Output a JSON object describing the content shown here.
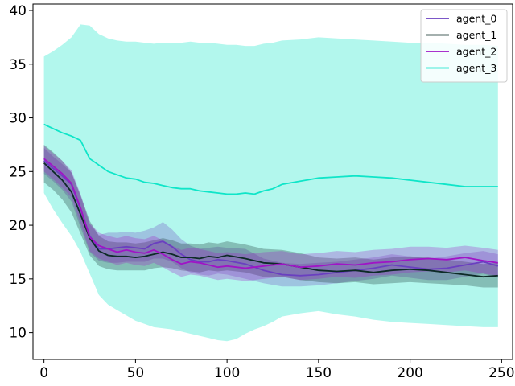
{
  "chart_data": {
    "type": "line",
    "title": "",
    "xlabel": "",
    "ylabel": "",
    "xlim": [
      -6,
      256
    ],
    "ylim": [
      7.5,
      40.6
    ],
    "xticks": [
      0,
      50,
      100,
      150,
      200,
      250
    ],
    "yticks": [
      10,
      15,
      20,
      25,
      30,
      35,
      40
    ],
    "grid": false,
    "legend_position": "top-right",
    "series": [
      {
        "name": "agent_0",
        "color": "#6a3fc0",
        "x": [
          0,
          5,
          10,
          15,
          20,
          25,
          30,
          35,
          40,
          45,
          50,
          55,
          60,
          65,
          70,
          75,
          80,
          85,
          90,
          95,
          100,
          110,
          120,
          130,
          140,
          150,
          160,
          170,
          180,
          190,
          200,
          210,
          220,
          230,
          240,
          248
        ],
        "y": [
          26.0,
          25.3,
          24.6,
          23.8,
          21.5,
          19.0,
          17.8,
          17.8,
          17.9,
          18.0,
          17.9,
          17.8,
          18.3,
          18.5,
          18.0,
          17.3,
          16.8,
          16.6,
          16.6,
          16.8,
          16.7,
          16.4,
          15.8,
          15.4,
          15.3,
          15.4,
          15.6,
          15.8,
          16.0,
          16.3,
          16.1,
          15.9,
          16.0,
          16.3,
          16.6,
          16.2
        ],
        "lower": [
          24.8,
          24.1,
          23.3,
          22.2,
          19.8,
          17.5,
          16.7,
          16.5,
          16.5,
          16.6,
          16.6,
          16.6,
          16.9,
          16.9,
          16.6,
          16.0,
          15.6,
          15.4,
          15.3,
          15.5,
          15.4,
          15.0,
          14.6,
          14.3,
          14.3,
          14.4,
          14.6,
          14.8,
          15.0,
          15.3,
          15.1,
          14.9,
          14.9,
          15.2,
          15.5,
          15.1
        ],
        "upper": [
          27.2,
          26.4,
          25.7,
          24.9,
          22.7,
          20.1,
          19.1,
          19.3,
          19.3,
          19.4,
          19.3,
          19.5,
          19.8,
          20.3,
          19.6,
          18.7,
          18.1,
          17.8,
          17.9,
          18.0,
          17.9,
          17.8,
          16.9,
          16.5,
          16.4,
          16.5,
          16.6,
          16.8,
          17.0,
          17.3,
          17.1,
          16.9,
          17.1,
          17.4,
          17.6,
          17.3
        ]
      },
      {
        "name": "agent_1",
        "color": "#0d2b27",
        "x": [
          0,
          5,
          10,
          15,
          20,
          25,
          30,
          35,
          40,
          45,
          50,
          55,
          60,
          65,
          70,
          75,
          80,
          85,
          90,
          95,
          100,
          110,
          120,
          130,
          140,
          150,
          160,
          170,
          180,
          190,
          200,
          210,
          220,
          230,
          240,
          248
        ],
        "y": [
          25.8,
          25.0,
          24.2,
          23.1,
          21.0,
          18.8,
          17.6,
          17.2,
          17.1,
          17.1,
          17.0,
          17.1,
          17.3,
          17.5,
          17.3,
          17.0,
          17.0,
          16.9,
          17.1,
          17.0,
          17.2,
          16.9,
          16.5,
          16.4,
          16.1,
          15.8,
          15.7,
          15.8,
          15.6,
          15.8,
          15.9,
          15.8,
          15.6,
          15.4,
          15.2,
          15.3
        ],
        "lower": [
          24.0,
          23.3,
          22.4,
          21.2,
          19.2,
          17.2,
          16.2,
          15.9,
          15.8,
          15.8,
          15.8,
          15.8,
          16.0,
          16.1,
          16.0,
          15.8,
          15.7,
          15.6,
          15.8,
          15.7,
          15.8,
          15.6,
          15.2,
          15.2,
          14.9,
          14.7,
          14.6,
          14.7,
          14.5,
          14.6,
          14.7,
          14.6,
          14.5,
          14.4,
          14.2,
          14.2
        ],
        "upper": [
          27.5,
          26.8,
          26.0,
          24.9,
          22.8,
          20.4,
          19.0,
          18.5,
          18.4,
          18.4,
          18.3,
          18.4,
          18.6,
          18.8,
          18.6,
          18.3,
          18.3,
          18.2,
          18.4,
          18.3,
          18.5,
          18.2,
          17.8,
          17.7,
          17.4,
          17.0,
          16.9,
          17.0,
          16.8,
          17.0,
          17.1,
          17.0,
          16.8,
          16.6,
          16.4,
          16.5
        ]
      },
      {
        "name": "agent_2",
        "color": "#a014c6",
        "x": [
          0,
          5,
          10,
          15,
          20,
          25,
          30,
          35,
          40,
          45,
          50,
          55,
          60,
          65,
          70,
          75,
          80,
          85,
          90,
          95,
          100,
          110,
          120,
          130,
          140,
          150,
          160,
          170,
          180,
          190,
          200,
          210,
          220,
          230,
          240,
          248
        ],
        "y": [
          26.2,
          25.5,
          24.8,
          23.9,
          21.6,
          18.9,
          18.1,
          17.8,
          17.5,
          17.7,
          17.5,
          17.4,
          17.7,
          17.3,
          16.8,
          16.4,
          16.6,
          16.5,
          16.3,
          16.1,
          16.2,
          16.0,
          16.2,
          16.4,
          16.1,
          16.2,
          16.4,
          16.3,
          16.5,
          16.6,
          16.8,
          16.9,
          16.8,
          17.0,
          16.7,
          16.5
        ],
        "lower": [
          25.0,
          24.3,
          23.5,
          22.6,
          20.2,
          17.6,
          16.9,
          16.6,
          16.3,
          16.5,
          16.3,
          16.2,
          16.5,
          16.1,
          15.6,
          15.2,
          15.4,
          15.3,
          15.1,
          14.9,
          15.0,
          14.8,
          15.0,
          15.2,
          14.9,
          15.0,
          15.2,
          15.1,
          15.3,
          15.4,
          15.6,
          15.7,
          15.6,
          15.8,
          15.5,
          15.3
        ],
        "upper": [
          27.4,
          26.7,
          26.0,
          25.1,
          22.9,
          20.2,
          19.3,
          19.0,
          18.8,
          19.0,
          18.8,
          18.7,
          19.0,
          18.6,
          18.1,
          17.7,
          17.9,
          17.8,
          17.6,
          17.4,
          17.5,
          17.3,
          17.5,
          17.6,
          17.3,
          17.4,
          17.6,
          17.5,
          17.7,
          17.8,
          18.0,
          18.0,
          17.9,
          18.1,
          17.9,
          17.7
        ]
      },
      {
        "name": "agent_3",
        "color": "#0fe5c8",
        "x": [
          0,
          5,
          10,
          15,
          20,
          25,
          30,
          35,
          40,
          45,
          50,
          55,
          60,
          65,
          70,
          75,
          80,
          85,
          90,
          95,
          100,
          105,
          110,
          115,
          120,
          125,
          130,
          140,
          150,
          160,
          170,
          180,
          190,
          200,
          210,
          220,
          230,
          240,
          248
        ],
        "y": [
          29.4,
          29.0,
          28.6,
          28.3,
          27.9,
          26.2,
          25.6,
          25.0,
          24.7,
          24.4,
          24.3,
          24.0,
          23.9,
          23.7,
          23.5,
          23.4,
          23.4,
          23.2,
          23.1,
          23.0,
          22.9,
          22.9,
          23.0,
          22.9,
          23.2,
          23.4,
          23.8,
          24.1,
          24.4,
          24.5,
          24.6,
          24.5,
          24.4,
          24.2,
          24.0,
          23.8,
          23.6,
          23.6,
          23.6
        ],
        "lower": [
          23.0,
          21.5,
          20.2,
          19.0,
          17.5,
          15.5,
          13.5,
          12.6,
          12.1,
          11.6,
          11.1,
          10.8,
          10.5,
          10.4,
          10.3,
          10.1,
          9.9,
          9.7,
          9.5,
          9.3,
          9.2,
          9.4,
          9.9,
          10.3,
          10.6,
          11.0,
          11.5,
          11.8,
          12.0,
          11.7,
          11.5,
          11.2,
          11.0,
          10.9,
          10.8,
          10.7,
          10.6,
          10.5,
          10.5
        ],
        "upper": [
          35.7,
          36.2,
          36.8,
          37.5,
          38.7,
          38.6,
          37.8,
          37.4,
          37.2,
          37.1,
          37.1,
          37.0,
          36.9,
          37.0,
          37.0,
          37.0,
          37.1,
          37.0,
          37.0,
          36.9,
          36.8,
          36.8,
          36.7,
          36.7,
          36.9,
          37.0,
          37.2,
          37.3,
          37.5,
          37.4,
          37.3,
          37.2,
          37.1,
          37.0,
          37.0,
          36.9,
          36.8,
          36.8,
          36.7
        ]
      }
    ]
  }
}
